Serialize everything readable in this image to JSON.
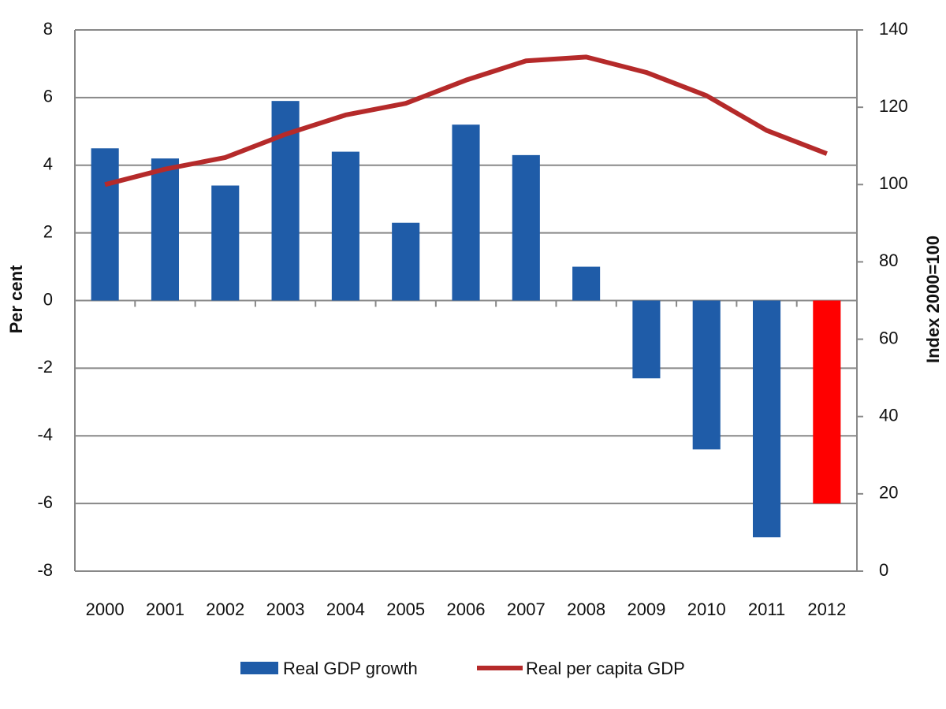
{
  "chart_data": {
    "type": "bar",
    "categories": [
      "2000",
      "2001",
      "2002",
      "2003",
      "2004",
      "2005",
      "2006",
      "2007",
      "2008",
      "2009",
      "2010",
      "2011",
      "2012"
    ],
    "series": [
      {
        "name": "Real GDP growth",
        "type": "bar",
        "color": "#1f5ca8",
        "colors": [
          "#1f5ca8",
          "#1f5ca8",
          "#1f5ca8",
          "#1f5ca8",
          "#1f5ca8",
          "#1f5ca8",
          "#1f5ca8",
          "#1f5ca8",
          "#1f5ca8",
          "#1f5ca8",
          "#1f5ca8",
          "#1f5ca8",
          "#ff0000"
        ],
        "values": [
          4.5,
          4.2,
          3.4,
          5.9,
          4.4,
          2.3,
          5.2,
          4.3,
          1.0,
          -2.3,
          -4.4,
          -7.0,
          -6.0
        ]
      },
      {
        "name": "Real per capita GDP",
        "type": "line",
        "color": "#b52a2a",
        "axis": "y2",
        "values": [
          100,
          104,
          107,
          113,
          118,
          121,
          127,
          132,
          133,
          129,
          123,
          114,
          108
        ]
      }
    ],
    "ylabel": "Per cent",
    "y2label": "Index 2000=100",
    "ylim": [
      -8,
      8
    ],
    "yticks": [
      -8,
      -6,
      -4,
      -2,
      0,
      2,
      4,
      6,
      8
    ],
    "y2lim": [
      0,
      140
    ],
    "y2ticks": [
      0,
      20,
      40,
      60,
      80,
      100,
      120,
      140
    ],
    "grid": true,
    "legend": "bottom"
  }
}
